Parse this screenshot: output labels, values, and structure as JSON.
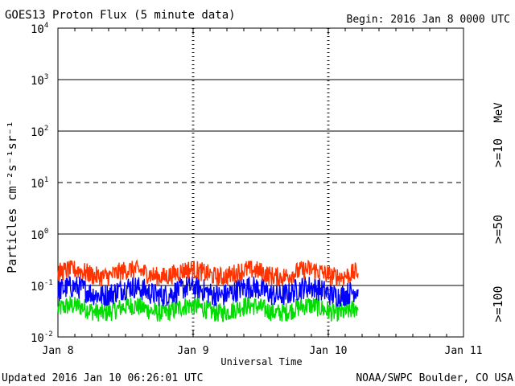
{
  "chart_data": {
    "type": "line",
    "title": "GOES13 Proton Flux (5 minute data)",
    "begin_label": "Begin: 2016 Jan 8 0000 UTC",
    "xlabel": "Universal Time",
    "ylabel": "Particles cm⁻²s⁻¹sr⁻¹",
    "x_ticks": [
      "Jan 8",
      "Jan 9",
      "Jan 10",
      "Jan 11"
    ],
    "xlim_days": [
      0,
      3
    ],
    "y_scale": "log",
    "ylim": [
      0.01,
      10000
    ],
    "y_ticks": [
      {
        "base": "10",
        "exp": "-2"
      },
      {
        "base": "10",
        "exp": "-1"
      },
      {
        "base": "10",
        "exp": "0"
      },
      {
        "base": "10",
        "exp": "1"
      },
      {
        "base": "10",
        "exp": "2"
      },
      {
        "base": "10",
        "exp": "3"
      },
      {
        "base": "10",
        "exp": "4"
      }
    ],
    "unit_label": "MeV",
    "legend_placement": "right",
    "series": [
      {
        "name": ">=10",
        "color": "#ff3300",
        "typical_range": [
          0.1,
          0.3
        ]
      },
      {
        "name": ">=50",
        "color": "#0000ff",
        "typical_range": [
          0.04,
          0.15
        ]
      },
      {
        "name": ">=100",
        "color": "#00dd00",
        "typical_range": [
          0.02,
          0.06
        ]
      }
    ],
    "data_end_day": 2.22,
    "grid": true
  },
  "footer": {
    "updated": "Updated 2016 Jan 10 06:26:01 UTC",
    "credit": "NOAA/SWPC Boulder, CO USA"
  }
}
